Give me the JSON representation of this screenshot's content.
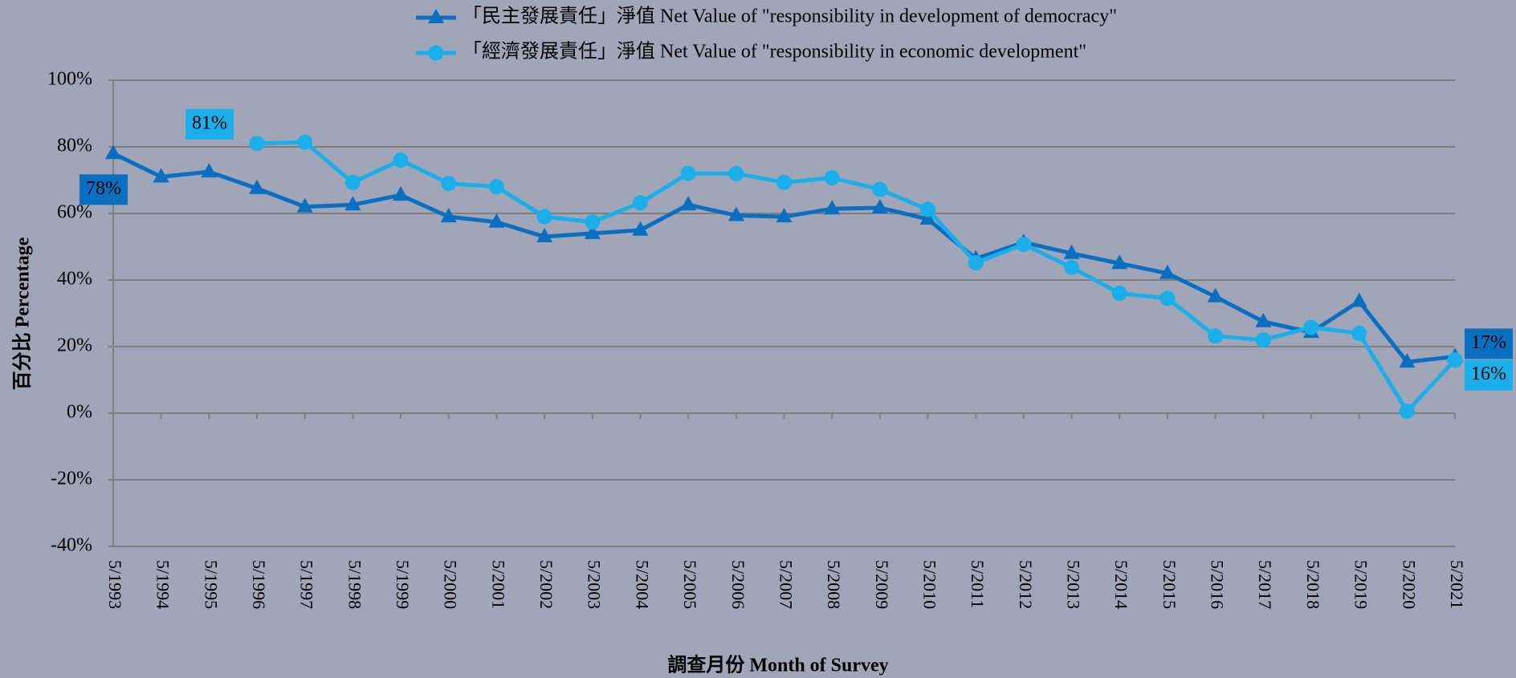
{
  "chart_data": {
    "type": "line",
    "y_label": "百分比 Percentage",
    "x_label": "調查月份 Month of Survey",
    "categories": [
      "5/1993",
      "5/1994",
      "5/1995",
      "5/1996",
      "5/1997",
      "5/1998",
      "5/1999",
      "5/2000",
      "5/2001",
      "5/2002",
      "5/2003",
      "5/2004",
      "5/2005",
      "5/2006",
      "5/2007",
      "5/2008",
      "5/2009",
      "5/2010",
      "5/2011",
      "5/2012",
      "5/2013",
      "5/2014",
      "5/2015",
      "5/2016",
      "5/2017",
      "5/2018",
      "5/2019",
      "5/2020",
      "5/2021"
    ],
    "series": [
      {
        "name": "「民主發展責任」淨值 Net Value of \"responsibility in development of democracy\"",
        "color": "#0b6fc1",
        "marker": "triangle",
        "values": [
          78,
          71,
          72.5,
          67.5,
          62,
          62.6,
          65.5,
          59,
          57.4,
          53,
          54,
          55,
          62.6,
          59.4,
          59,
          61.4,
          61.7,
          58.3,
          46.4,
          51.3,
          48,
          45,
          42,
          35,
          27.5,
          24.3,
          33.6,
          15.4,
          17
        ],
        "value_labels": [
          "78%",
          null,
          null,
          null,
          null,
          null,
          null,
          null,
          null,
          null,
          null,
          null,
          null,
          null,
          null,
          null,
          null,
          null,
          null,
          null,
          null,
          null,
          null,
          null,
          null,
          null,
          null,
          null,
          "17%"
        ]
      },
      {
        "name": "「經濟發展責任」淨值 Net Value of \"responsibility in economic development\"",
        "color": "#1aaeea",
        "marker": "circle",
        "values": [
          null,
          null,
          null,
          81,
          81.4,
          69.3,
          76,
          69,
          68,
          59,
          57.4,
          63.2,
          72,
          72,
          69.3,
          70.7,
          67.2,
          61.2,
          45.2,
          50.7,
          43.8,
          36,
          34.5,
          23.2,
          22,
          25.8,
          24,
          0.6,
          16
        ],
        "value_labels": [
          null,
          null,
          null,
          "81%",
          null,
          null,
          null,
          null,
          null,
          null,
          null,
          null,
          null,
          null,
          null,
          null,
          null,
          null,
          null,
          null,
          null,
          null,
          null,
          null,
          null,
          null,
          null,
          null,
          "16%"
        ]
      }
    ],
    "ylim": [
      -40,
      100
    ],
    "yticks": [
      {
        "value": -40,
        "label": "-40%"
      },
      {
        "value": -20,
        "label": "-20%"
      },
      {
        "value": 0,
        "label": "0%"
      },
      {
        "value": 20,
        "label": "20%"
      },
      {
        "value": 40,
        "label": "40%"
      },
      {
        "value": 60,
        "label": "60%"
      },
      {
        "value": 80,
        "label": "80%"
      },
      {
        "value": 100,
        "label": "100%"
      }
    ],
    "grid": true
  }
}
